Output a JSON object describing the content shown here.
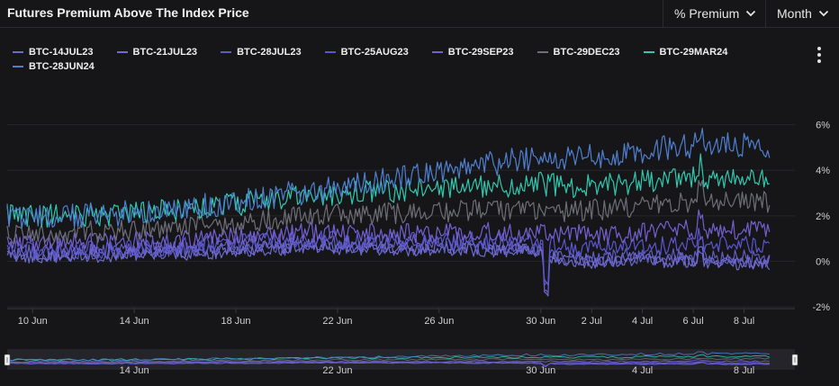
{
  "header": {
    "title": "Futures Premium Above The Index Price",
    "metric_label": "% Premium",
    "period_label": "Month"
  },
  "colors": {
    "background": "#161618",
    "grid": "#26262a",
    "axis_text": "#cfcfcf"
  },
  "chart_data": {
    "type": "line",
    "title": "Futures Premium Above The Index Price",
    "xlabel": "",
    "ylabel": "% Premium",
    "x_range": [
      "2023-06-09",
      "2023-07-09"
    ],
    "ylim": [
      -2,
      6.5
    ],
    "y_ticks": [
      "6%",
      "4%",
      "2%",
      "0%",
      "-2%"
    ],
    "y_tick_values": [
      6,
      4,
      2,
      0,
      -2
    ],
    "x_ticks": [
      "10 Jun",
      "14 Jun",
      "18 Jun",
      "22 Jun",
      "26 Jun",
      "30 Jun",
      "2 Jul",
      "4 Jul",
      "6 Jul",
      "8 Jul"
    ],
    "x_tick_days": [
      1,
      5,
      9,
      13,
      17,
      21,
      23,
      25,
      27,
      29
    ],
    "nav_ticks": [
      "14 Jun",
      "22 Jun",
      "30 Jun",
      "4 Jul",
      "8 Jul"
    ],
    "nav_tick_days": [
      5,
      13,
      21,
      25,
      29
    ],
    "grid": true,
    "legend_position": "top-left",
    "series": [
      {
        "name": "BTC-14JUL23",
        "color": "#6a6acb",
        "days": [
          0,
          3,
          6,
          9,
          12,
          15,
          18,
          21,
          22,
          24,
          26,
          28,
          30
        ],
        "values": [
          0.2,
          0.2,
          0.3,
          0.4,
          0.6,
          0.5,
          0.5,
          0.4,
          -0.1,
          0.0,
          0.0,
          -0.1,
          -0.1
        ]
      },
      {
        "name": "BTC-21JUL23",
        "color": "#7168d8",
        "days": [
          0,
          3,
          6,
          9,
          12,
          15,
          18,
          21,
          22,
          24,
          26,
          28,
          30
        ],
        "values": [
          0.3,
          0.3,
          0.4,
          0.5,
          0.7,
          0.6,
          0.6,
          0.5,
          0.0,
          0.1,
          0.1,
          0.0,
          0.0
        ]
      },
      {
        "name": "BTC-28JUL23",
        "color": "#5f5cc0",
        "days": [
          0,
          3,
          6,
          9,
          12,
          15,
          18,
          21,
          22,
          24,
          26,
          28,
          30
        ],
        "values": [
          0.4,
          0.4,
          0.5,
          0.6,
          0.8,
          0.7,
          0.7,
          0.6,
          0.1,
          0.2,
          0.3,
          0.2,
          0.1
        ]
      },
      {
        "name": "BTC-25AUG23",
        "color": "#5a55d0",
        "days": [
          0,
          3,
          6,
          9,
          12,
          15,
          18,
          21,
          22,
          24,
          26,
          28,
          30
        ],
        "values": [
          0.5,
          0.5,
          0.6,
          0.8,
          1.0,
          0.9,
          0.9,
          0.8,
          0.6,
          0.6,
          0.7,
          0.7,
          0.7
        ]
      },
      {
        "name": "BTC-29SEP23",
        "color": "#7360d0",
        "days": [
          0,
          3,
          6,
          9,
          12,
          15,
          18,
          21,
          22,
          24,
          26,
          28,
          30
        ],
        "values": [
          0.8,
          0.8,
          0.9,
          1.1,
          1.3,
          1.2,
          1.3,
          1.2,
          1.2,
          1.2,
          1.4,
          1.4,
          1.3
        ]
      },
      {
        "name": "BTC-29DEC23",
        "color": "#6e6e78",
        "days": [
          0,
          3,
          6,
          9,
          12,
          15,
          18,
          21,
          22,
          24,
          26,
          28,
          30
        ],
        "values": [
          1.2,
          1.3,
          1.4,
          1.7,
          2.0,
          2.1,
          2.2,
          2.3,
          2.2,
          2.3,
          2.5,
          2.6,
          2.6
        ]
      },
      {
        "name": "BTC-29MAR24",
        "color": "#2fc9b0",
        "days": [
          0,
          3,
          6,
          9,
          12,
          15,
          18,
          21,
          22,
          24,
          26,
          28,
          30
        ],
        "values": [
          2.0,
          2.0,
          2.2,
          2.5,
          2.9,
          3.1,
          3.2,
          3.4,
          3.3,
          3.4,
          3.6,
          3.7,
          3.7
        ]
      },
      {
        "name": "BTC-28JUN24",
        "color": "#4f7fd0",
        "days": [
          0,
          3,
          6,
          9,
          12,
          15,
          18,
          21,
          22,
          24,
          26,
          28,
          30
        ],
        "values": [
          2.0,
          2.0,
          2.2,
          2.6,
          3.1,
          3.6,
          4.1,
          4.6,
          4.5,
          4.7,
          5.0,
          5.2,
          5.0
        ]
      }
    ]
  }
}
